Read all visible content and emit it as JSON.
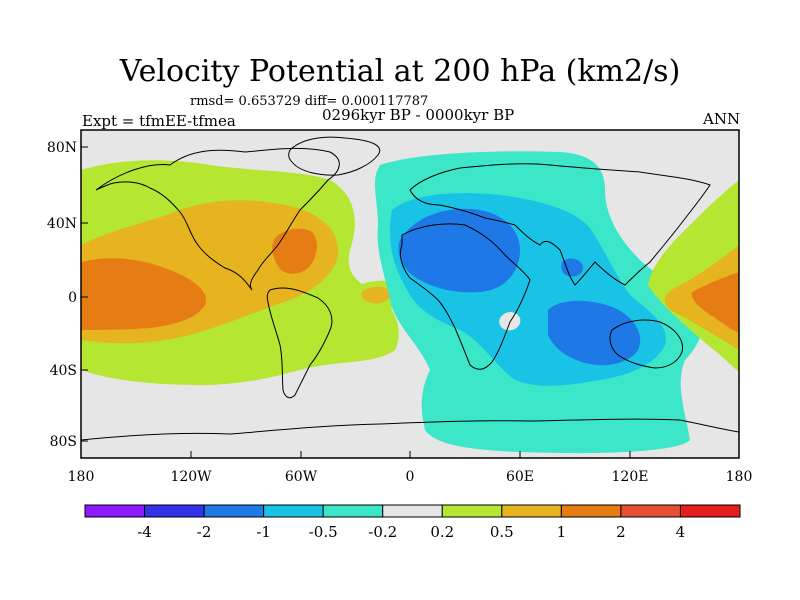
{
  "title": "Velocity Potential at 200 hPa (km2/s)",
  "stats": "rmsd= 0.653729 diff= 0.000117787",
  "experiment": "Expt = tfmEE-tfmea",
  "period": "0296kyr BP - 0000kyr BP",
  "season": "ANN",
  "lat_labels": [
    "80N",
    "40N",
    "0",
    "40S",
    "80S"
  ],
  "lon_labels": [
    "180",
    "120W",
    "60W",
    "0",
    "60E",
    "120E",
    "180"
  ],
  "colorbar": {
    "labels": [
      "-4",
      "-2",
      "-1",
      "-0.5",
      "-0.2",
      "0.2",
      "0.5",
      "1",
      "2",
      "4"
    ],
    "colors": [
      "#8c1aff",
      "#3232e6",
      "#1e78e6",
      "#19c3e6",
      "#3ce6c8",
      "#e6e6e6",
      "#b4e632",
      "#e6b41e",
      "#e67d14",
      "#e65032",
      "#e61e1e"
    ]
  },
  "fill_colors": {
    "neutral": "#e6e6e6",
    "light_cyan": "#3ce6c8",
    "cyan": "#19c3e6",
    "blue": "#1e78e6",
    "light_green": "#b4e632",
    "yellow": "#e6b41e",
    "orange": "#e67d14"
  }
}
